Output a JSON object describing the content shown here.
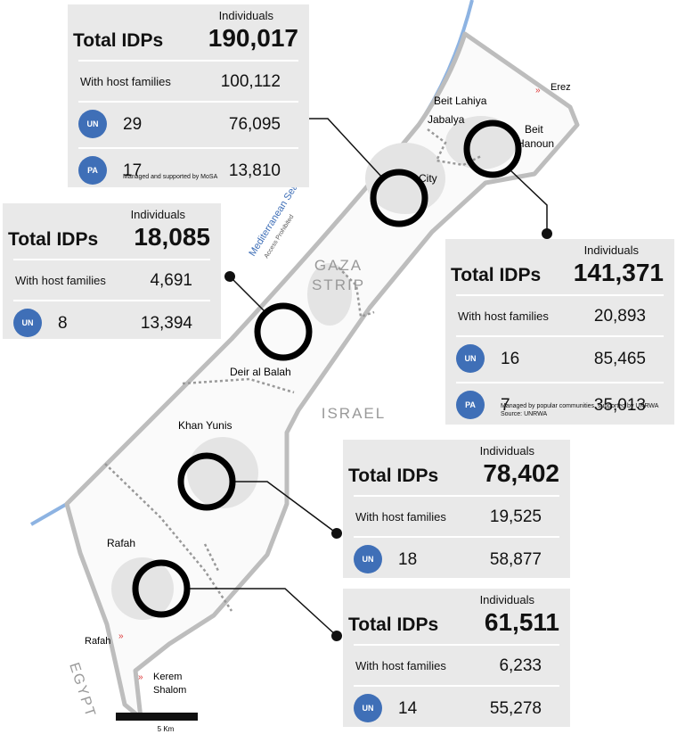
{
  "map": {
    "sea": "Mediterranean Sea",
    "sea_note": "Access Prohibited",
    "region_line1": "GAZA",
    "region_line2": "STRIP",
    "israel": "ISRAEL",
    "egypt": "EGYPT",
    "places": {
      "beit_lahiya": "Beit Lahiya",
      "jabalya": "Jabalya",
      "beit": "Beit",
      "hanoun": "Hanoun",
      "city": "City",
      "erez": "Erez",
      "deir_al_balah": "Deir al Balah",
      "khan_yunis": "Khan Yunis",
      "rafah_city": "Rafah",
      "rafah_crossing": "Rafah",
      "kerem": "Kerem",
      "shalom": "Shalom"
    },
    "scale": "5 Km"
  },
  "panels": [
    {
      "individuals": "Individuals",
      "title": "Total IDPs",
      "total": "190,017",
      "host_label": "With host families",
      "host_value": "100,112",
      "rows": [
        {
          "icon": "UN",
          "count": "29",
          "individuals": "76,095"
        },
        {
          "icon": "PA",
          "count": "17",
          "individuals": "13,810"
        }
      ],
      "notes": [
        "Managed and supported by MoSA"
      ]
    },
    {
      "individuals": "Individuals",
      "title": "Total IDPs",
      "total": "18,085",
      "host_label": "With host families",
      "host_value": "4,691",
      "rows": [
        {
          "icon": "UN",
          "count": "8",
          "individuals": "13,394"
        }
      ]
    },
    {
      "individuals": "Individuals",
      "title": "Total IDPs",
      "total": "141,371",
      "host_label": "With host families",
      "host_value": "20,893",
      "rows": [
        {
          "icon": "UN",
          "count": "16",
          "individuals": "85,465"
        },
        {
          "icon": "PA",
          "count": "7",
          "individuals": "35,013"
        }
      ],
      "notes": [
        "Managed by popular communities, supported by UNRWA",
        "Source: UNRWA"
      ]
    },
    {
      "individuals": "Individuals",
      "title": "Total IDPs",
      "total": "78,402",
      "host_label": "With host families",
      "host_value": "19,525",
      "rows": [
        {
          "icon": "UN",
          "count": "18",
          "individuals": "58,877"
        }
      ]
    },
    {
      "individuals": "Individuals",
      "title": "Total IDPs",
      "total": "61,511",
      "host_label": "With host families",
      "host_value": "6,233",
      "rows": [
        {
          "icon": "UN",
          "count": "14",
          "individuals": "55,278"
        }
      ]
    }
  ]
}
